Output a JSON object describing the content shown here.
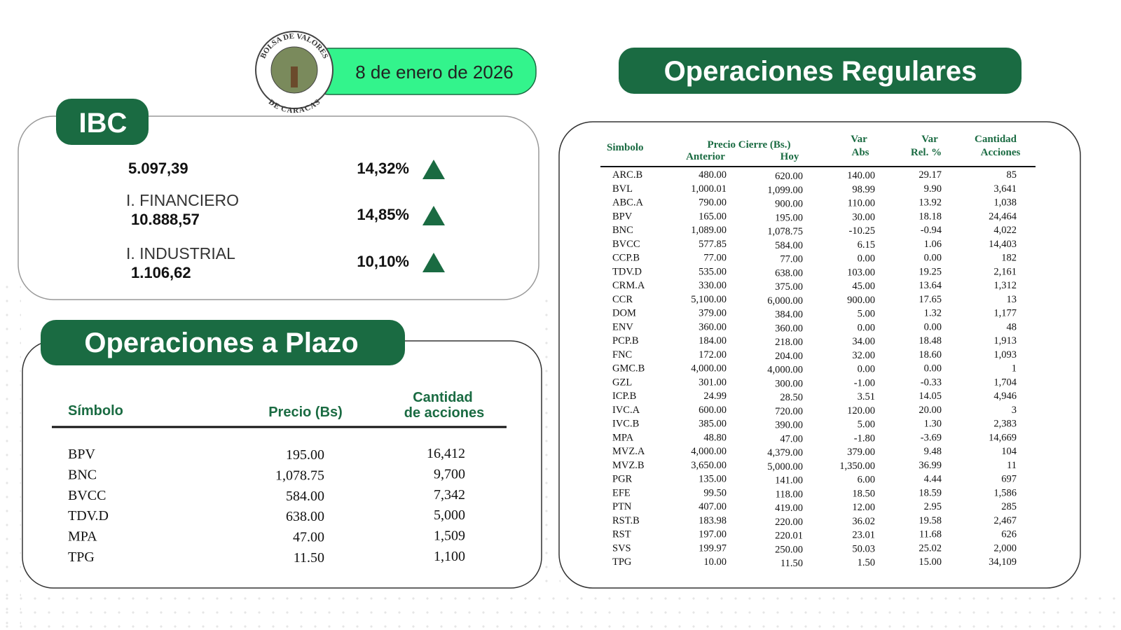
{
  "header": {
    "logo_top": "BOLSA DE VALORES",
    "logo_bottom": "DE CARACAS",
    "date": "8 de enero de 2026"
  },
  "ibc": {
    "title": "IBC",
    "rows": [
      {
        "value": "5.097,39",
        "change": "14,32%"
      },
      {
        "label": "I. FINANCIERO",
        "value": "10.888,57",
        "change": "14,85%"
      },
      {
        "label": "I. INDUSTRIAL",
        "value": "1.106,62",
        "change": "10,10%"
      }
    ]
  },
  "plazo": {
    "title": "Operaciones a Plazo",
    "headers": [
      "Símbolo",
      "Precio (Bs)",
      [
        "Cantidad",
        "de acciones"
      ]
    ],
    "rows": [
      [
        "BPV",
        "195.00",
        "16,412"
      ],
      [
        "BNC",
        "1,078.75",
        "9,700"
      ],
      [
        "BVCC",
        "584.00",
        "7,342"
      ],
      [
        "TDV.D",
        "638.00",
        "5,000"
      ],
      [
        "MPA",
        "47.00",
        "1,509"
      ],
      [
        "TPG",
        "11.50",
        "1,100"
      ]
    ]
  },
  "regulares": {
    "title": "Operaciones Regulares",
    "headers": {
      "symbol": "Simbolo",
      "price": "Precio Cierre (Bs.)",
      "previous": "Anterior",
      "today": "Hoy",
      "var_abs": [
        "Var",
        "Abs"
      ],
      "var_rel": [
        "Var",
        "Rel. %"
      ],
      "quantity": [
        "Cantidad",
        "Acciones"
      ]
    },
    "rows": [
      [
        "ARC.B",
        "480.00",
        "620.00",
        "140.00",
        "29.17",
        "85"
      ],
      [
        "BVL",
        "1,000.01",
        "1,099.00",
        "98.99",
        "9.90",
        "3,641"
      ],
      [
        "ABC.A",
        "790.00",
        "900.00",
        "110.00",
        "13.92",
        "1,038"
      ],
      [
        "BPV",
        "165.00",
        "195.00",
        "30.00",
        "18.18",
        "24,464"
      ],
      [
        "BNC",
        "1,089.00",
        "1,078.75",
        "-10.25",
        "-0.94",
        "4,022"
      ],
      [
        "BVCC",
        "577.85",
        "584.00",
        "6.15",
        "1.06",
        "14,403"
      ],
      [
        "CCP.B",
        "77.00",
        "77.00",
        "0.00",
        "0.00",
        "182"
      ],
      [
        "TDV.D",
        "535.00",
        "638.00",
        "103.00",
        "19.25",
        "2,161"
      ],
      [
        "CRM.A",
        "330.00",
        "375.00",
        "45.00",
        "13.64",
        "1,312"
      ],
      [
        "CCR",
        "5,100.00",
        "6,000.00",
        "900.00",
        "17.65",
        "13"
      ],
      [
        "DOM",
        "379.00",
        "384.00",
        "5.00",
        "1.32",
        "1,177"
      ],
      [
        "ENV",
        "360.00",
        "360.00",
        "0.00",
        "0.00",
        "48"
      ],
      [
        "PCP.B",
        "184.00",
        "218.00",
        "34.00",
        "18.48",
        "1,913"
      ],
      [
        "FNC",
        "172.00",
        "204.00",
        "32.00",
        "18.60",
        "1,093"
      ],
      [
        "GMC.B",
        "4,000.00",
        "4,000.00",
        "0.00",
        "0.00",
        "1"
      ],
      [
        "GZL",
        "301.00",
        "300.00",
        "-1.00",
        "-0.33",
        "1,704"
      ],
      [
        "ICP.B",
        "24.99",
        "28.50",
        "3.51",
        "14.05",
        "4,946"
      ],
      [
        "IVC.A",
        "600.00",
        "720.00",
        "120.00",
        "20.00",
        "3"
      ],
      [
        "IVC.B",
        "385.00",
        "390.00",
        "5.00",
        "1.30",
        "2,383"
      ],
      [
        "MPA",
        "48.80",
        "47.00",
        "-1.80",
        "-3.69",
        "14,669"
      ],
      [
        "MVZ.A",
        "4,000.00",
        "4,379.00",
        "379.00",
        "9.48",
        "104"
      ],
      [
        "MVZ.B",
        "3,650.00",
        "5,000.00",
        "1,350.00",
        "36.99",
        "11"
      ],
      [
        "PGR",
        "135.00",
        "141.00",
        "6.00",
        "4.44",
        "697"
      ],
      [
        "EFE",
        "99.50",
        "118.00",
        "18.50",
        "18.59",
        "1,586"
      ],
      [
        "PTN",
        "407.00",
        "419.00",
        "12.00",
        "2.95",
        "285"
      ],
      [
        "RST.B",
        "183.98",
        "220.00",
        "36.02",
        "19.58",
        "2,467"
      ],
      [
        "RST",
        "197.00",
        "220.01",
        "23.01",
        "11.68",
        "626"
      ],
      [
        "SVS",
        "199.97",
        "250.00",
        "50.03",
        "25.02",
        "2,000"
      ],
      [
        "TPG",
        "10.00",
        "11.50",
        "1.50",
        "15.00",
        "34,109"
      ]
    ]
  }
}
